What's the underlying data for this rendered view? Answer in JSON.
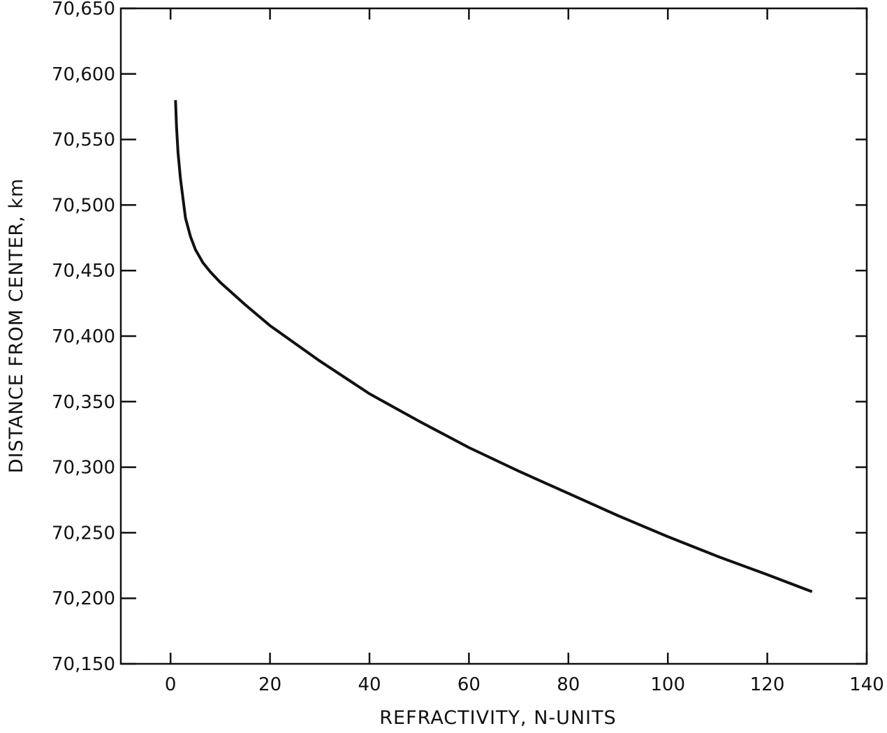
{
  "chart_data": {
    "type": "line",
    "title": "",
    "xlabel": "REFRACTIVITY, N-UNITS",
    "ylabel": "DISTANCE FROM CENTER, km",
    "xlim": [
      -10,
      140
    ],
    "ylim": [
      70150,
      70650
    ],
    "x_ticks": [
      0,
      20,
      40,
      60,
      80,
      100,
      120,
      140
    ],
    "x_tick_labels": [
      "0",
      "20",
      "40",
      "60",
      "80",
      "100",
      "120",
      "140"
    ],
    "y_ticks": [
      70150,
      70200,
      70250,
      70300,
      70350,
      70400,
      70450,
      70500,
      70550,
      70600,
      70650
    ],
    "y_tick_labels": [
      "70,150",
      "70,200",
      "70,250",
      "70,300",
      "70,350",
      "70,400",
      "70,450",
      "70,500",
      "70,550",
      "70,600",
      "70,650"
    ],
    "grid": false,
    "legend": "none",
    "series": [
      {
        "x": [
          1,
          1.2,
          1.5,
          2,
          2.5,
          3,
          4,
          5,
          6.5,
          8,
          10,
          15,
          20,
          30,
          40,
          50,
          60,
          70,
          80,
          90,
          100,
          110,
          120,
          129
        ],
        "y": [
          70580,
          70560,
          70540,
          70520,
          70505,
          70490,
          70476,
          70466,
          70456,
          70449,
          70441,
          70424,
          70408,
          70381,
          70356,
          70335,
          70315,
          70297,
          70280,
          70263,
          70247,
          70232,
          70218,
          70205
        ]
      }
    ]
  }
}
